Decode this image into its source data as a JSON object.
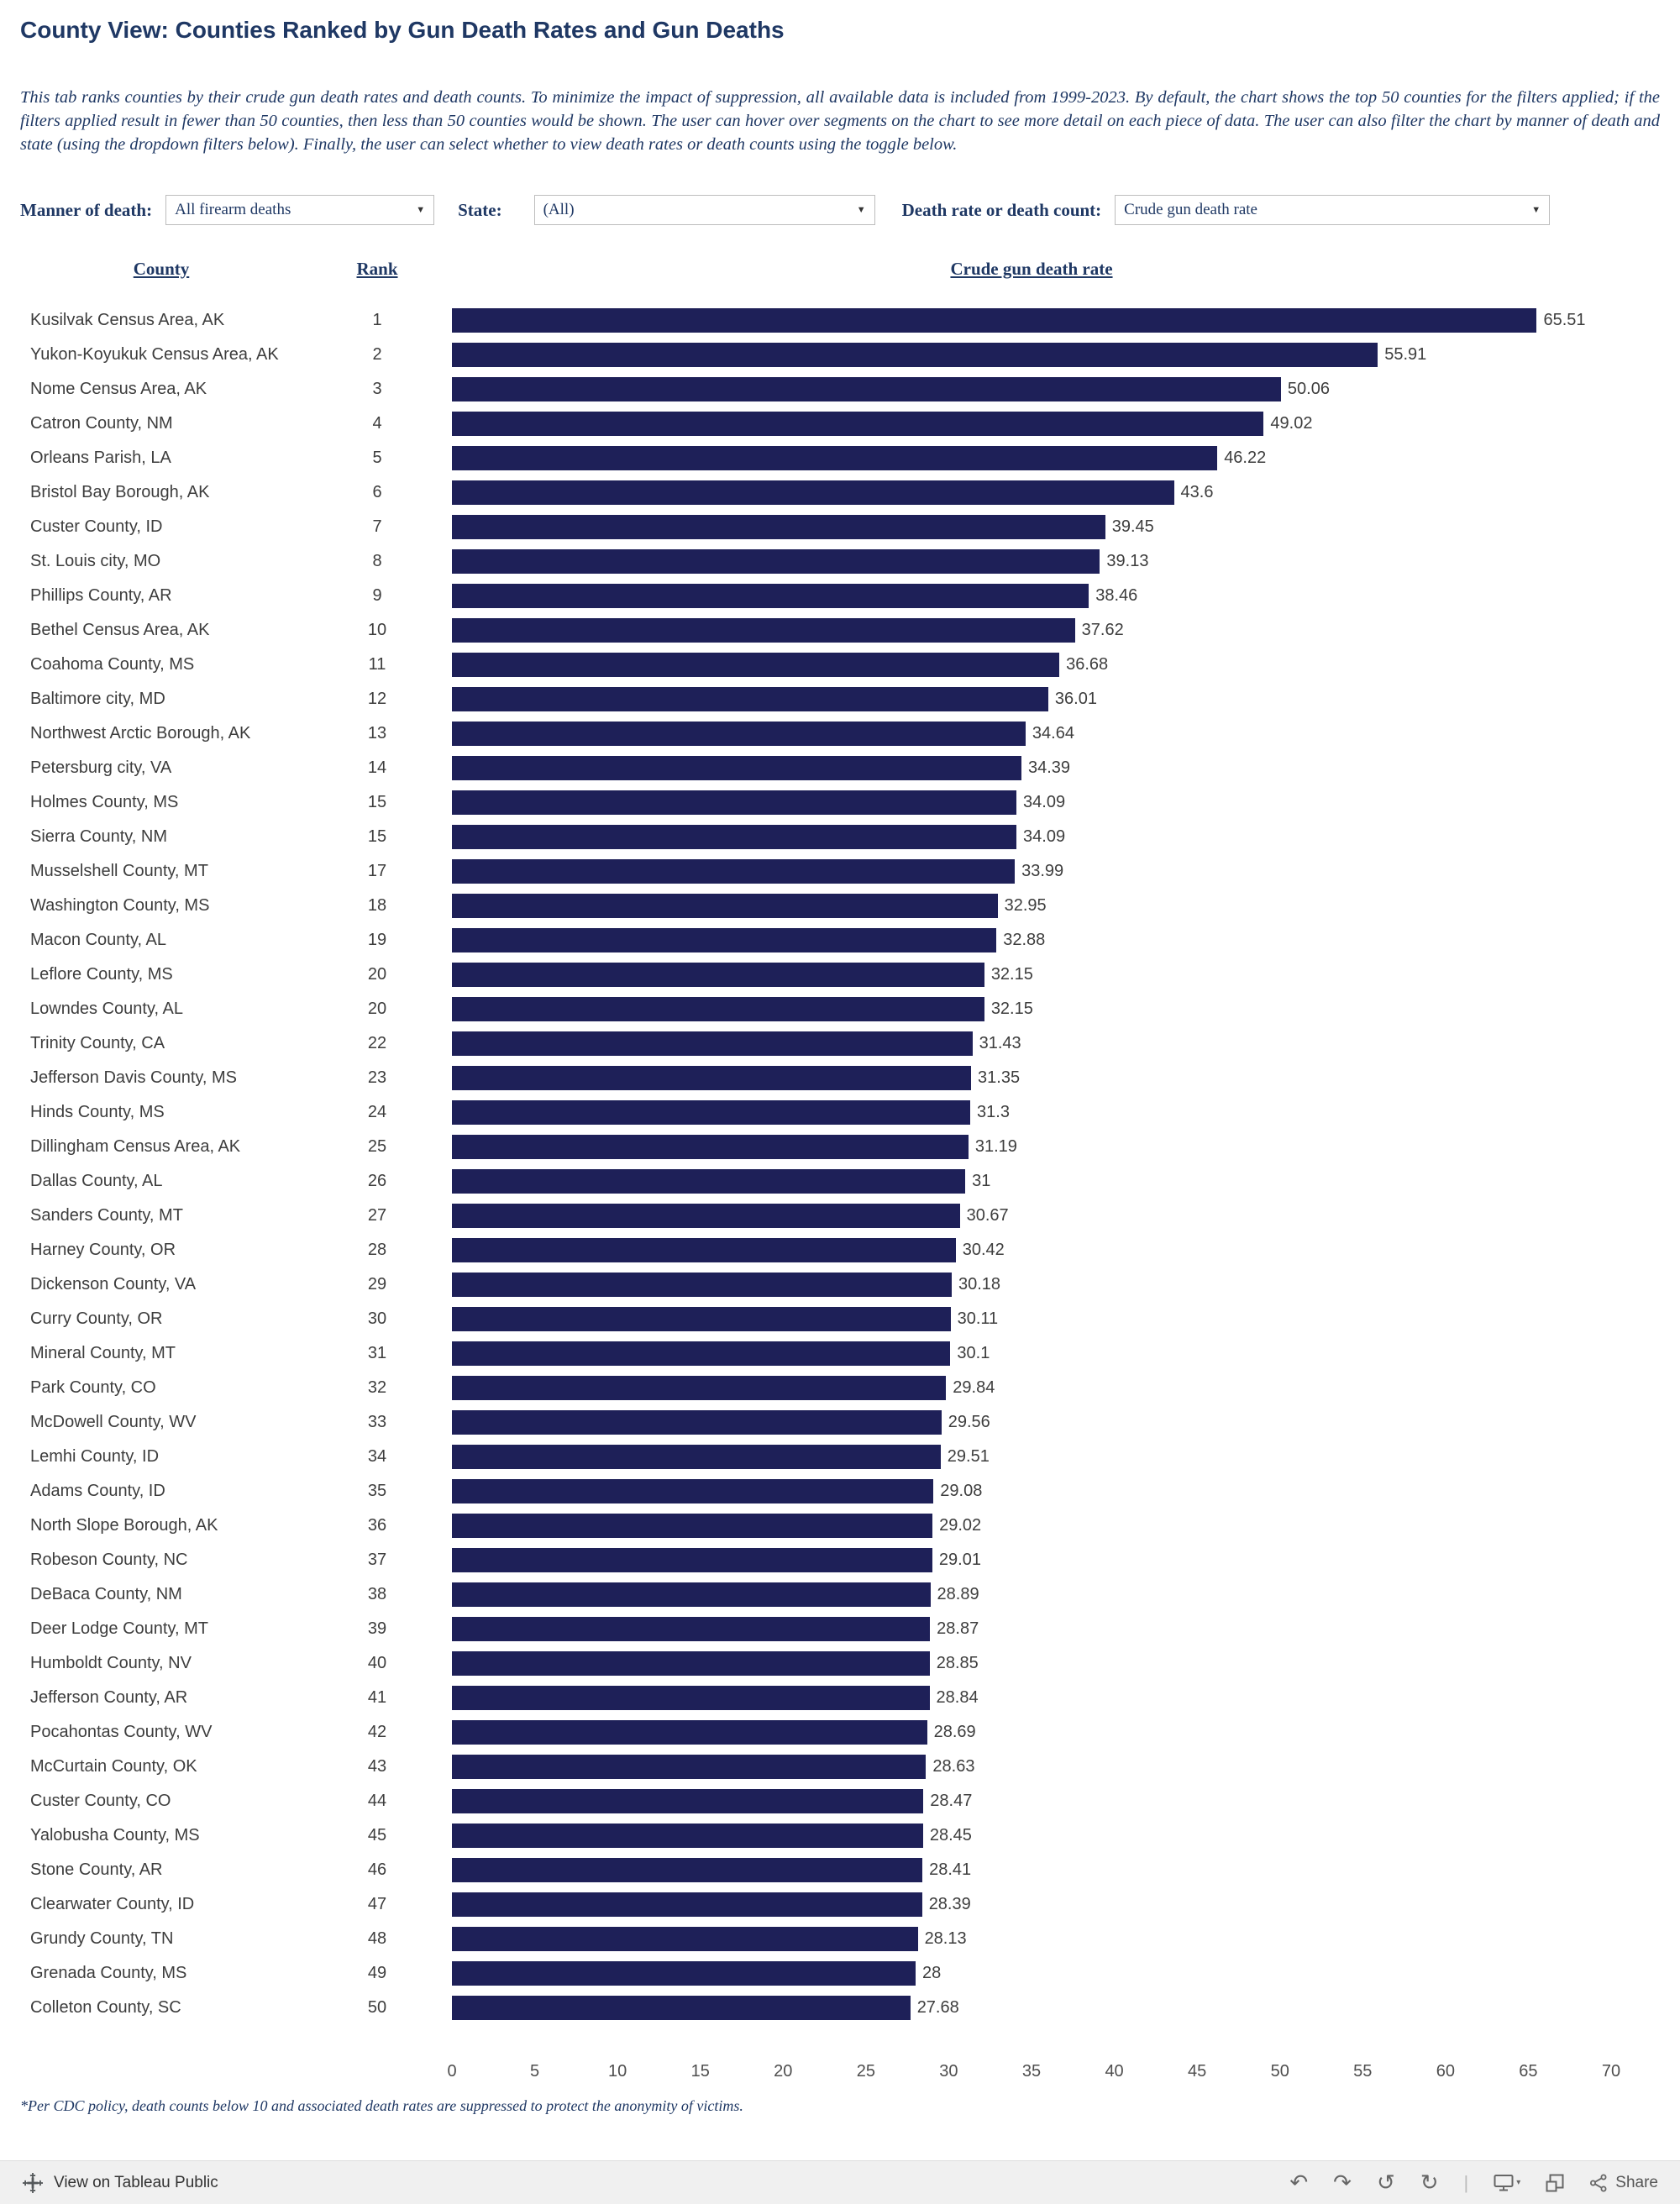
{
  "header": {
    "title": "County View: Counties Ranked by Gun Death Rates and Gun Deaths",
    "description": "This tab ranks counties by their crude gun death rates and death counts. To minimize the impact of suppression, all available data is included from 1999-2023. By default, the chart shows the top 50 counties for the filters applied; if the filters applied result in fewer than 50 counties, then less than 50 counties would be shown. The user can hover over segments on the chart to see more detail on each piece of data. The user can also filter the chart by manner of death and state (using the dropdown filters below). Finally, the user can select whether to view death rates or death counts using the toggle below."
  },
  "filters": {
    "manner_label": "Manner of death:",
    "manner_value": "All firearm deaths",
    "state_label": "State:",
    "state_value": "(All)",
    "metric_label": "Death rate or death count:",
    "metric_value": "Crude gun death rate"
  },
  "chart_data": {
    "type": "bar",
    "orientation": "horizontal",
    "title": "",
    "xlabel": "",
    "ylabel": "",
    "xlim": [
      0,
      70
    ],
    "x_ticks": [
      0,
      5,
      10,
      15,
      20,
      25,
      30,
      35,
      40,
      45,
      50,
      55,
      60,
      65,
      70
    ],
    "grid": false,
    "legend": false,
    "bar_color": "#1e2058",
    "column_headers": {
      "county": "County",
      "rank": "Rank",
      "value": "Crude gun death rate"
    },
    "rows": [
      {
        "county": "Kusilvak Census Area, AK",
        "rank": 1,
        "value": 65.51
      },
      {
        "county": "Yukon-Koyukuk Census Area, AK",
        "rank": 2,
        "value": 55.91
      },
      {
        "county": "Nome Census Area, AK",
        "rank": 3,
        "value": 50.06
      },
      {
        "county": "Catron County, NM",
        "rank": 4,
        "value": 49.02
      },
      {
        "county": "Orleans Parish, LA",
        "rank": 5,
        "value": 46.22
      },
      {
        "county": "Bristol Bay Borough, AK",
        "rank": 6,
        "value": 43.6
      },
      {
        "county": "Custer County, ID",
        "rank": 7,
        "value": 39.45
      },
      {
        "county": "St. Louis city, MO",
        "rank": 8,
        "value": 39.13
      },
      {
        "county": "Phillips County, AR",
        "rank": 9,
        "value": 38.46
      },
      {
        "county": "Bethel Census Area, AK",
        "rank": 10,
        "value": 37.62
      },
      {
        "county": "Coahoma County, MS",
        "rank": 11,
        "value": 36.68
      },
      {
        "county": "Baltimore city, MD",
        "rank": 12,
        "value": 36.01
      },
      {
        "county": "Northwest Arctic Borough, AK",
        "rank": 13,
        "value": 34.64
      },
      {
        "county": "Petersburg city, VA",
        "rank": 14,
        "value": 34.39
      },
      {
        "county": "Holmes County, MS",
        "rank": 15,
        "value": 34.09
      },
      {
        "county": "Sierra County, NM",
        "rank": 15,
        "value": 34.09
      },
      {
        "county": "Musselshell County, MT",
        "rank": 17,
        "value": 33.99
      },
      {
        "county": "Washington County, MS",
        "rank": 18,
        "value": 32.95
      },
      {
        "county": "Macon County, AL",
        "rank": 19,
        "value": 32.88
      },
      {
        "county": "Leflore County, MS",
        "rank": 20,
        "value": 32.15
      },
      {
        "county": "Lowndes County, AL",
        "rank": 20,
        "value": 32.15
      },
      {
        "county": "Trinity County, CA",
        "rank": 22,
        "value": 31.43
      },
      {
        "county": "Jefferson Davis County, MS",
        "rank": 23,
        "value": 31.35
      },
      {
        "county": "Hinds County, MS",
        "rank": 24,
        "value": 31.3
      },
      {
        "county": "Dillingham Census Area, AK",
        "rank": 25,
        "value": 31.19
      },
      {
        "county": "Dallas County, AL",
        "rank": 26,
        "value": 31
      },
      {
        "county": "Sanders County, MT",
        "rank": 27,
        "value": 30.67
      },
      {
        "county": "Harney County, OR",
        "rank": 28,
        "value": 30.42
      },
      {
        "county": "Dickenson County, VA",
        "rank": 29,
        "value": 30.18
      },
      {
        "county": "Curry County, OR",
        "rank": 30,
        "value": 30.11
      },
      {
        "county": "Mineral County, MT",
        "rank": 31,
        "value": 30.1
      },
      {
        "county": "Park County, CO",
        "rank": 32,
        "value": 29.84
      },
      {
        "county": "McDowell County, WV",
        "rank": 33,
        "value": 29.56
      },
      {
        "county": "Lemhi County, ID",
        "rank": 34,
        "value": 29.51
      },
      {
        "county": "Adams County, ID",
        "rank": 35,
        "value": 29.08
      },
      {
        "county": "North Slope Borough, AK",
        "rank": 36,
        "value": 29.02
      },
      {
        "county": "Robeson County, NC",
        "rank": 37,
        "value": 29.01
      },
      {
        "county": "DeBaca County, NM",
        "rank": 38,
        "value": 28.89
      },
      {
        "county": "Deer Lodge County, MT",
        "rank": 39,
        "value": 28.87
      },
      {
        "county": "Humboldt County, NV",
        "rank": 40,
        "value": 28.85
      },
      {
        "county": "Jefferson County, AR",
        "rank": 41,
        "value": 28.84
      },
      {
        "county": "Pocahontas County, WV",
        "rank": 42,
        "value": 28.69
      },
      {
        "county": "McCurtain County, OK",
        "rank": 43,
        "value": 28.63
      },
      {
        "county": "Custer County, CO",
        "rank": 44,
        "value": 28.47
      },
      {
        "county": "Yalobusha County, MS",
        "rank": 45,
        "value": 28.45
      },
      {
        "county": "Stone County, AR",
        "rank": 46,
        "value": 28.41
      },
      {
        "county": "Clearwater County, ID",
        "rank": 47,
        "value": 28.39
      },
      {
        "county": "Grundy County, TN",
        "rank": 48,
        "value": 28.13
      },
      {
        "county": "Grenada County, MS",
        "rank": 49,
        "value": 28
      },
      {
        "county": "Colleton County, SC",
        "rank": 50,
        "value": 27.68
      }
    ]
  },
  "footnote": "*Per CDC policy, death counts below 10 and associated death rates are suppressed to protect the anonymity of victims.",
  "toolbar": {
    "view_label": "View on Tableau Public",
    "undo_icon": "↶",
    "redo_icon": "↷",
    "reset_icon": "↺",
    "refresh_icon": "↻",
    "separator": "|",
    "device_caret": "▾",
    "share_label": "Share"
  },
  "colors": {
    "accent_navy": "#1f3864",
    "bar_navy": "#1e2058",
    "toolbar_bg": "#f0f0f0",
    "text_gray": "#3d3d3d"
  }
}
